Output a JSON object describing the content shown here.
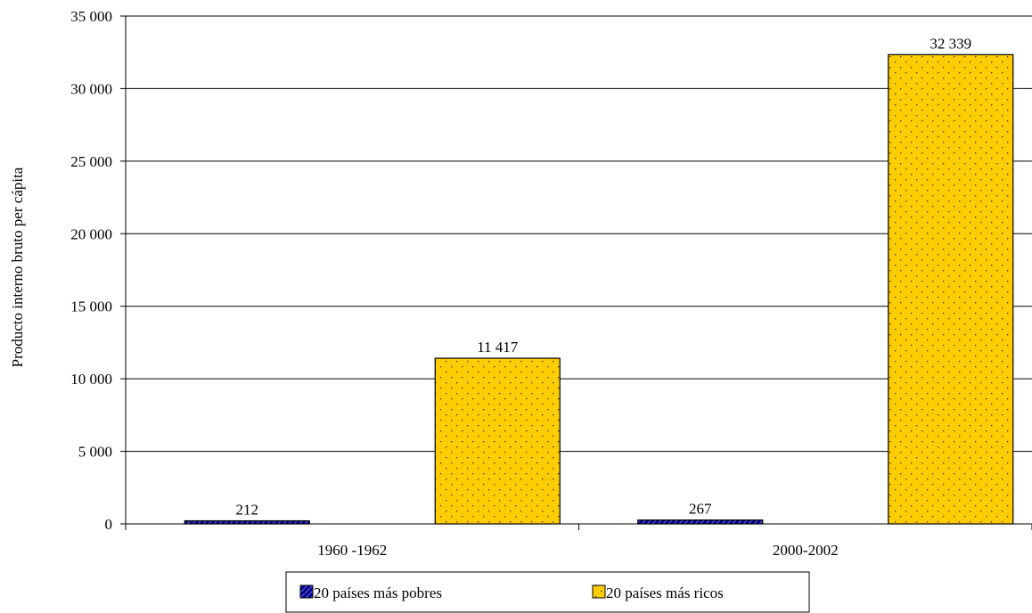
{
  "chart_data": {
    "type": "bar",
    "ylabel": "Producto interno bruto per cápita",
    "xlabel": "",
    "ylim": [
      0,
      35000
    ],
    "yticks": [
      0,
      5000,
      10000,
      15000,
      20000,
      25000,
      30000,
      35000
    ],
    "ytick_labels": [
      "0",
      "5 000",
      "10 000",
      "15 000",
      "20 000",
      "25 000",
      "30 000",
      "35 000"
    ],
    "categories": [
      "1960 -1962",
      "2000-2002"
    ],
    "series": [
      {
        "name": "20 países más pobres",
        "values": [
          212,
          267
        ],
        "labels": [
          "212",
          "267"
        ],
        "color": "#000080",
        "pattern": "diagonal-stripes"
      },
      {
        "name": "20 países más ricos",
        "values": [
          11417,
          32339
        ],
        "labels": [
          "11 417",
          "32 339"
        ],
        "color": "#FFCC00",
        "pattern": "dots"
      }
    ],
    "grid": true,
    "legend": "bottom"
  }
}
